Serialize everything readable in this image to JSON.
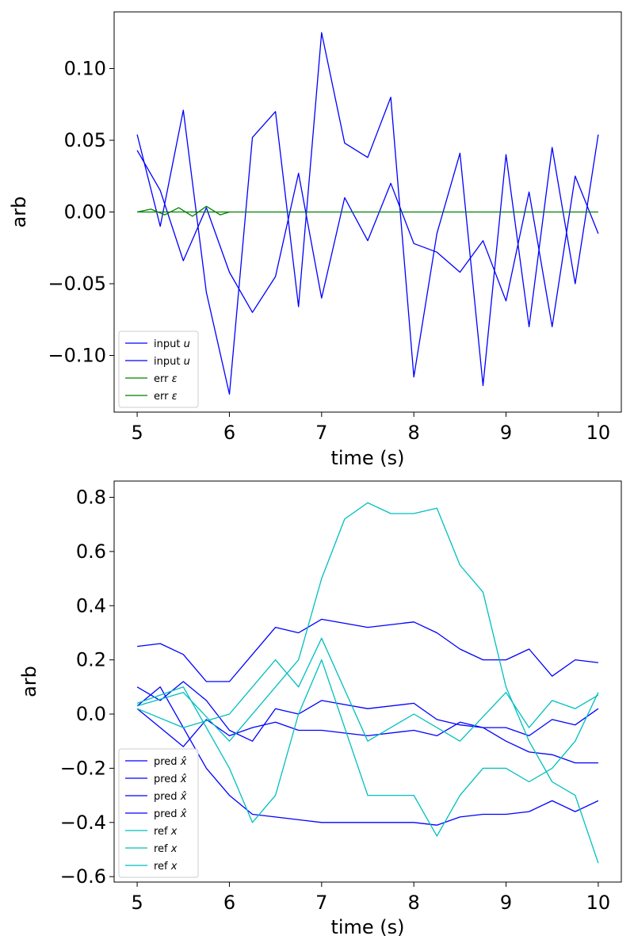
{
  "chart_data": [
    {
      "type": "line",
      "xlabel": "time (s)",
      "ylabel": "arb",
      "xlim": [
        4.75,
        10.25
      ],
      "ylim": [
        -0.1395,
        0.1395
      ],
      "xticks": [
        {
          "v": 5,
          "label": "5"
        },
        {
          "v": 6,
          "label": "6"
        },
        {
          "v": 7,
          "label": "7"
        },
        {
          "v": 8,
          "label": "8"
        },
        {
          "v": 9,
          "label": "9"
        },
        {
          "v": 10,
          "label": "10"
        }
      ],
      "yticks": [
        {
          "v": 0.1,
          "label": "0.10"
        },
        {
          "v": 0.05,
          "label": "0.05"
        },
        {
          "v": 0.0,
          "label": "0.00"
        },
        {
          "v": -0.05,
          "label": "−0.05"
        },
        {
          "v": -0.1,
          "label": "−0.10"
        }
      ],
      "grid": false,
      "legend_position": "lower-left",
      "series": [
        {
          "name": "input u",
          "legend": "input",
          "legend_math": "u",
          "color": "#0000ff",
          "x": [
            5.0,
            5.25,
            5.5,
            5.75,
            6.0,
            6.25,
            6.5,
            6.75,
            7.0,
            7.25,
            7.5,
            7.75,
            8.0,
            8.25,
            8.5,
            8.75,
            9.0,
            9.25,
            9.5,
            9.75,
            10.0
          ],
          "y": [
            0.054,
            -0.01,
            0.071,
            -0.056,
            -0.127,
            0.052,
            0.07,
            -0.066,
            0.125,
            0.048,
            0.038,
            0.08,
            -0.115,
            -0.015,
            0.041,
            -0.121,
            0.04,
            -0.08,
            0.045,
            -0.05,
            0.054
          ]
        },
        {
          "name": "input u",
          "legend": "input",
          "legend_math": "u",
          "color": "#0000ff",
          "x": [
            5.0,
            5.25,
            5.5,
            5.75,
            6.0,
            6.25,
            6.5,
            6.75,
            7.0,
            7.25,
            7.5,
            7.75,
            8.0,
            8.25,
            8.5,
            8.75,
            9.0,
            9.25,
            9.5,
            9.75,
            10.0
          ],
          "y": [
            0.043,
            0.015,
            -0.034,
            0.003,
            -0.042,
            -0.07,
            -0.045,
            0.027,
            -0.06,
            0.01,
            -0.02,
            0.02,
            -0.022,
            -0.028,
            -0.042,
            -0.02,
            -0.062,
            0.014,
            -0.08,
            0.025,
            -0.015
          ]
        },
        {
          "name": "err ε",
          "legend": "err",
          "legend_math": "ε",
          "color": "#008000",
          "x": [
            5.0,
            10.0
          ],
          "y": [
            0.0,
            0.0
          ]
        },
        {
          "name": "err ε",
          "legend": "err",
          "legend_math": "ε",
          "color": "#008000",
          "x": [
            5.0,
            5.15,
            5.3,
            5.45,
            5.6,
            5.75,
            5.9,
            6.0
          ],
          "y": [
            0.0,
            0.002,
            -0.002,
            0.003,
            -0.003,
            0.004,
            -0.002,
            0.0
          ]
        }
      ]
    },
    {
      "type": "line",
      "xlabel": "time (s)",
      "ylabel": "arb",
      "xlim": [
        4.75,
        10.25
      ],
      "ylim": [
        -0.62,
        0.86
      ],
      "xticks": [
        {
          "v": 5,
          "label": "5"
        },
        {
          "v": 6,
          "label": "6"
        },
        {
          "v": 7,
          "label": "7"
        },
        {
          "v": 8,
          "label": "8"
        },
        {
          "v": 9,
          "label": "9"
        },
        {
          "v": 10,
          "label": "10"
        }
      ],
      "yticks": [
        {
          "v": 0.8,
          "label": "0.8"
        },
        {
          "v": 0.6,
          "label": "0.6"
        },
        {
          "v": 0.4,
          "label": "0.4"
        },
        {
          "v": 0.2,
          "label": "0.2"
        },
        {
          "v": 0.0,
          "label": "0.0"
        },
        {
          "v": -0.2,
          "label": "−0.2"
        },
        {
          "v": -0.4,
          "label": "−0.4"
        },
        {
          "v": -0.6,
          "label": "−0.6"
        }
      ],
      "grid": false,
      "legend_position": "lower-left",
      "series": [
        {
          "name": "pred x̂",
          "legend": "pred",
          "legend_math": "x̂",
          "color": "#0000ff",
          "x": [
            5.0,
            5.25,
            5.5,
            5.75,
            6.0,
            6.25,
            6.5,
            6.75,
            7.0,
            7.5,
            8.0,
            8.25,
            8.5,
            8.75,
            9.0,
            9.25,
            9.5,
            9.75,
            10.0
          ],
          "y": [
            0.25,
            0.26,
            0.22,
            0.12,
            0.12,
            0.22,
            0.32,
            0.3,
            0.35,
            0.32,
            0.34,
            0.3,
            0.24,
            0.2,
            0.2,
            0.24,
            0.14,
            0.2,
            0.19
          ]
        },
        {
          "name": "pred x̂",
          "legend": "pred",
          "legend_math": "x̂",
          "color": "#0000ff",
          "x": [
            5.0,
            5.25,
            5.5,
            5.75,
            6.0,
            6.25,
            6.5,
            6.75,
            7.0,
            7.5,
            8.0,
            8.25,
            8.5,
            8.75,
            9.0,
            9.25,
            9.5,
            9.75,
            10.0
          ],
          "y": [
            0.03,
            0.1,
            -0.05,
            -0.2,
            -0.3,
            -0.37,
            -0.38,
            -0.39,
            -0.4,
            -0.4,
            -0.4,
            -0.41,
            -0.38,
            -0.37,
            -0.37,
            -0.36,
            -0.32,
            -0.36,
            -0.32
          ]
        },
        {
          "name": "pred x̂",
          "legend": "pred",
          "legend_math": "x̂",
          "color": "#0000ff",
          "x": [
            5.0,
            5.25,
            5.5,
            5.75,
            6.0,
            6.25,
            6.5,
            6.75,
            7.0,
            7.5,
            8.0,
            8.25,
            8.5,
            8.75,
            9.0,
            9.25,
            9.5,
            9.75,
            10.0
          ],
          "y": [
            0.1,
            0.05,
            0.12,
            0.05,
            -0.06,
            -0.1,
            0.02,
            0.0,
            0.05,
            0.02,
            0.04,
            -0.02,
            -0.04,
            -0.05,
            -0.1,
            -0.14,
            -0.15,
            -0.18,
            -0.18
          ]
        },
        {
          "name": "pred x̂",
          "legend": "pred",
          "legend_math": "x̂",
          "color": "#0000ff",
          "x": [
            5.0,
            5.25,
            5.5,
            5.75,
            6.0,
            6.25,
            6.5,
            6.75,
            7.0,
            7.5,
            8.0,
            8.25,
            8.5,
            8.75,
            9.0,
            9.25,
            9.5,
            9.75,
            10.0
          ],
          "y": [
            0.02,
            -0.05,
            -0.12,
            -0.02,
            -0.08,
            -0.05,
            -0.03,
            -0.06,
            -0.06,
            -0.08,
            -0.06,
            -0.08,
            -0.03,
            -0.05,
            -0.05,
            -0.08,
            -0.02,
            -0.04,
            0.02
          ]
        },
        {
          "name": "ref x",
          "legend": "ref",
          "legend_math": "x",
          "color": "#00bfbf",
          "x": [
            5.0,
            5.5,
            6.0,
            6.5,
            6.75,
            7.0,
            7.25,
            7.5,
            7.75,
            8.0,
            8.25,
            8.5,
            8.75,
            9.0,
            9.25,
            9.5,
            9.75,
            10.0
          ],
          "y": [
            0.03,
            0.08,
            -0.1,
            0.1,
            0.2,
            0.5,
            0.72,
            0.78,
            0.74,
            0.74,
            0.76,
            0.55,
            0.45,
            0.1,
            -0.1,
            -0.25,
            -0.3,
            -0.55
          ]
        },
        {
          "name": "ref x",
          "legend": "ref",
          "legend_math": "x",
          "color": "#00bfbf",
          "x": [
            5.0,
            5.5,
            6.0,
            6.25,
            6.5,
            6.75,
            7.0,
            7.5,
            8.0,
            8.25,
            8.5,
            8.75,
            9.0,
            9.25,
            9.5,
            9.75,
            10.0
          ],
          "y": [
            0.04,
            0.1,
            -0.2,
            -0.4,
            -0.3,
            0.0,
            0.2,
            -0.3,
            -0.3,
            -0.45,
            -0.3,
            -0.2,
            -0.2,
            -0.25,
            -0.2,
            -0.1,
            0.08
          ]
        },
        {
          "name": "ref x",
          "legend": "ref",
          "legend_math": "x",
          "color": "#00bfbf",
          "x": [
            5.0,
            5.5,
            6.0,
            6.5,
            6.75,
            7.0,
            7.5,
            8.0,
            8.5,
            9.0,
            9.25,
            9.5,
            9.75,
            10.0
          ],
          "y": [
            0.02,
            -0.05,
            0.0,
            0.2,
            0.1,
            0.28,
            -0.1,
            0.0,
            -0.1,
            0.08,
            -0.05,
            0.05,
            0.02,
            0.07
          ]
        }
      ]
    }
  ]
}
